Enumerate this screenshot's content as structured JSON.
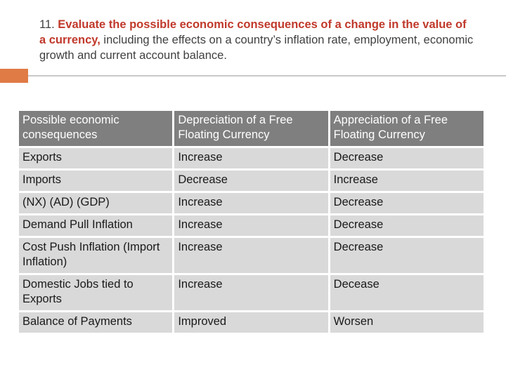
{
  "heading": {
    "number": "11. ",
    "emphasis": "Evaluate the possible economic consequences of a change in the value of a currency,",
    "rest": " including the effects on a country’s inflation rate, employment, economic growth and current account balance.",
    "emphasis_color": "#c0392b",
    "text_color": "#404040"
  },
  "accent_color": "#e07b45",
  "table": {
    "headers": [
      "Possible economic consequences",
      "Depreciation of a Free Floating Currency",
      "Appreciation of a Free Floating Currency"
    ],
    "rows": [
      [
        "Exports",
        "Increase",
        "Decrease"
      ],
      [
        "Imports",
        "Decrease",
        "Increase"
      ],
      [
        "(NX) (AD) (GDP)",
        "Increase",
        "Decrease"
      ],
      [
        "Demand Pull Inflation",
        "Increase",
        "Decrease"
      ],
      [
        "Cost Push Inflation (Import Inflation)",
        "Increase",
        "Decrease"
      ],
      [
        "Domestic Jobs tied to Exports",
        "Increase",
        "Decease"
      ],
      [
        "Balance of Payments",
        "Improved",
        "Worsen"
      ]
    ]
  }
}
